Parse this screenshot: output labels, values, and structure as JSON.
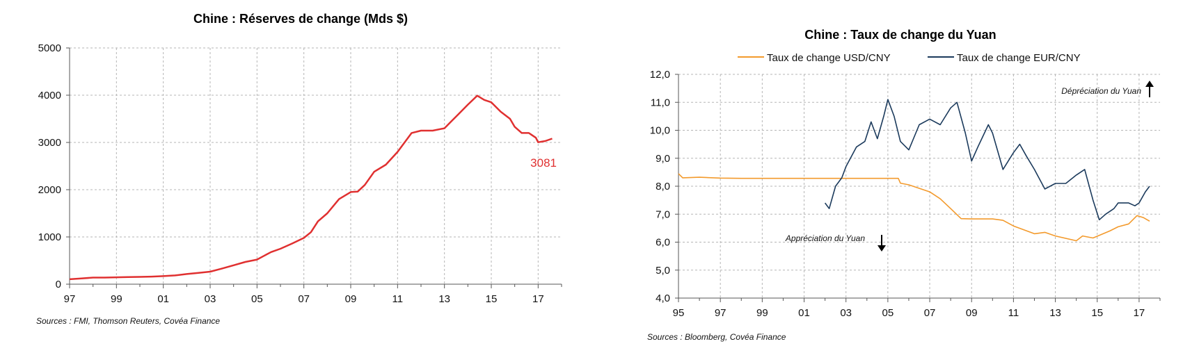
{
  "chart_data": [
    {
      "type": "line",
      "title": "Chine : Réserves de change (Mds $)",
      "source": "Sources :  FMI, Thomson Reuters, Covéa Finance",
      "y_ticks": [
        "5000",
        "4000",
        "3000",
        "2000",
        "1000",
        "0"
      ],
      "x_ticks": [
        "97",
        "99",
        "01",
        "03",
        "05",
        "07",
        "09",
        "11",
        "13",
        "15",
        "17"
      ],
      "ylim": [
        0,
        5000
      ],
      "xlim": [
        1997,
        2018
      ],
      "grid": true,
      "end_label": "3081",
      "series": [
        {
          "color": "#e03030",
          "points": [
            [
              1997.0,
              105
            ],
            [
              1997.5,
              120
            ],
            [
              1998.0,
              140
            ],
            [
              1998.5,
              140
            ],
            [
              1999.0,
              145
            ],
            [
              1999.5,
              150
            ],
            [
              2000.0,
              155
            ],
            [
              2000.5,
              160
            ],
            [
              2001.0,
              170
            ],
            [
              2001.5,
              185
            ],
            [
              2002.0,
              215
            ],
            [
              2002.5,
              240
            ],
            [
              2003.0,
              265
            ],
            [
              2003.5,
              330
            ],
            [
              2004.0,
              400
            ],
            [
              2004.5,
              470
            ],
            [
              2005.0,
              520
            ],
            [
              2005.3,
              600
            ],
            [
              2005.6,
              680
            ],
            [
              2006.0,
              750
            ],
            [
              2006.5,
              860
            ],
            [
              2007.0,
              980
            ],
            [
              2007.3,
              1100
            ],
            [
              2007.6,
              1330
            ],
            [
              2008.0,
              1500
            ],
            [
              2008.5,
              1800
            ],
            [
              2009.0,
              1950
            ],
            [
              2009.3,
              1960
            ],
            [
              2009.6,
              2100
            ],
            [
              2010.0,
              2380
            ],
            [
              2010.5,
              2530
            ],
            [
              2011.0,
              2800
            ],
            [
              2011.3,
              3000
            ],
            [
              2011.6,
              3200
            ],
            [
              2012.0,
              3250
            ],
            [
              2012.5,
              3250
            ],
            [
              2013.0,
              3300
            ],
            [
              2013.3,
              3450
            ],
            [
              2013.6,
              3600
            ],
            [
              2014.0,
              3800
            ],
            [
              2014.4,
              3990
            ],
            [
              2014.7,
              3900
            ],
            [
              2015.0,
              3850
            ],
            [
              2015.4,
              3650
            ],
            [
              2015.8,
              3500
            ],
            [
              2016.0,
              3330
            ],
            [
              2016.3,
              3200
            ],
            [
              2016.6,
              3200
            ],
            [
              2016.9,
              3100
            ],
            [
              2017.0,
              3005
            ],
            [
              2017.3,
              3030
            ],
            [
              2017.6,
              3081
            ]
          ]
        }
      ]
    },
    {
      "type": "line",
      "title": "Chine : Taux de change du Yuan",
      "source": "Sources : Bloomberg, Covéa Finance",
      "y_ticks": [
        "12,0",
        "11,0",
        "10,0",
        "9,0",
        "8,0",
        "7,0",
        "6,0",
        "5,0",
        "4,0"
      ],
      "x_ticks": [
        "95",
        "97",
        "99",
        "01",
        "03",
        "05",
        "07",
        "09",
        "11",
        "13",
        "15",
        "17"
      ],
      "ylim": [
        4,
        12
      ],
      "xlim": [
        1995,
        2018
      ],
      "grid": true,
      "legend_position": "top",
      "annotations": {
        "depreciation": "Dépréciation du Yuan",
        "appreciation": "Appréciation du Yuan"
      },
      "series": [
        {
          "name": "Taux de change USD/CNY",
          "color": "#f39a2c",
          "points": [
            [
              1995.0,
              8.45
            ],
            [
              1995.2,
              8.3
            ],
            [
              1996.0,
              8.32
            ],
            [
              1997.0,
              8.29
            ],
            [
              1998.0,
              8.28
            ],
            [
              2000.0,
              8.28
            ],
            [
              2003.0,
              8.28
            ],
            [
              2005.5,
              8.28
            ],
            [
              2005.6,
              8.11
            ],
            [
              2006.0,
              8.05
            ],
            [
              2007.0,
              7.8
            ],
            [
              2007.5,
              7.55
            ],
            [
              2008.0,
              7.2
            ],
            [
              2008.5,
              6.84
            ],
            [
              2009.0,
              6.83
            ],
            [
              2010.0,
              6.83
            ],
            [
              2010.5,
              6.78
            ],
            [
              2011.0,
              6.58
            ],
            [
              2012.0,
              6.3
            ],
            [
              2012.5,
              6.35
            ],
            [
              2013.0,
              6.22
            ],
            [
              2014.0,
              6.05
            ],
            [
              2014.3,
              6.22
            ],
            [
              2014.8,
              6.15
            ],
            [
              2015.6,
              6.4
            ],
            [
              2016.0,
              6.55
            ],
            [
              2016.5,
              6.65
            ],
            [
              2016.9,
              6.95
            ],
            [
              2017.2,
              6.88
            ],
            [
              2017.5,
              6.75
            ]
          ]
        },
        {
          "name": "Taux de change EUR/CNY",
          "color": "#1b3a5c",
          "points": [
            [
              2002.0,
              7.4
            ],
            [
              2002.2,
              7.2
            ],
            [
              2002.5,
              8.0
            ],
            [
              2002.8,
              8.3
            ],
            [
              2003.0,
              8.7
            ],
            [
              2003.5,
              9.4
            ],
            [
              2003.9,
              9.6
            ],
            [
              2004.2,
              10.3
            ],
            [
              2004.5,
              9.7
            ],
            [
              2004.8,
              10.5
            ],
            [
              2005.0,
              11.1
            ],
            [
              2005.3,
              10.5
            ],
            [
              2005.6,
              9.6
            ],
            [
              2006.0,
              9.3
            ],
            [
              2006.5,
              10.2
            ],
            [
              2007.0,
              10.4
            ],
            [
              2007.5,
              10.2
            ],
            [
              2008.0,
              10.8
            ],
            [
              2008.3,
              11.0
            ],
            [
              2008.7,
              9.9
            ],
            [
              2009.0,
              8.9
            ],
            [
              2009.3,
              9.4
            ],
            [
              2009.8,
              10.2
            ],
            [
              2010.0,
              9.9
            ],
            [
              2010.5,
              8.6
            ],
            [
              2011.0,
              9.2
            ],
            [
              2011.3,
              9.5
            ],
            [
              2011.6,
              9.1
            ],
            [
              2012.0,
              8.6
            ],
            [
              2012.5,
              7.9
            ],
            [
              2013.0,
              8.1
            ],
            [
              2013.5,
              8.1
            ],
            [
              2014.0,
              8.4
            ],
            [
              2014.4,
              8.6
            ],
            [
              2014.8,
              7.5
            ],
            [
              2015.1,
              6.8
            ],
            [
              2015.4,
              7.0
            ],
            [
              2015.8,
              7.2
            ],
            [
              2016.0,
              7.4
            ],
            [
              2016.5,
              7.4
            ],
            [
              2016.8,
              7.3
            ],
            [
              2017.0,
              7.4
            ],
            [
              2017.3,
              7.8
            ],
            [
              2017.5,
              8.0
            ]
          ]
        }
      ]
    }
  ]
}
